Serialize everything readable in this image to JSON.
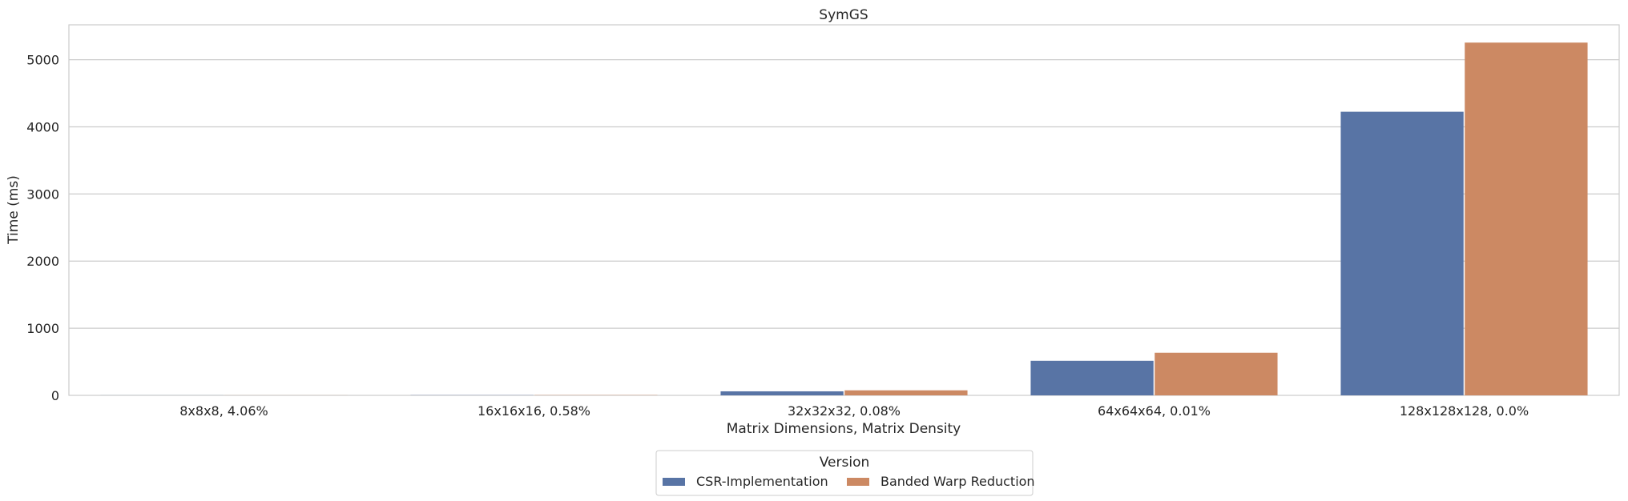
{
  "chart_data": {
    "type": "bar",
    "title": "SymGS",
    "xlabel": "Matrix Dimensions, Matrix Density",
    "ylabel": "Time (ms)",
    "categories": [
      "8x8x8, 4.06%",
      "16x16x16, 0.58%",
      "32x32x32, 0.08%",
      "64x64x64, 0.01%",
      "128x128x128, 0.0%"
    ],
    "series": [
      {
        "name": "CSR-Implementation",
        "color": "#5874a5",
        "values": [
          1,
          3,
          60,
          515,
          4225
        ]
      },
      {
        "name": "Banded Warp Reduction",
        "color": "#cc8963",
        "values": [
          1,
          4,
          75,
          635,
          5255
        ]
      }
    ],
    "ylim": [
      0,
      5520
    ],
    "yticks": [
      0,
      1000,
      2000,
      3000,
      4000,
      5000
    ],
    "grid": true,
    "legend": {
      "title": "Version",
      "placement": "bottom-center"
    }
  }
}
